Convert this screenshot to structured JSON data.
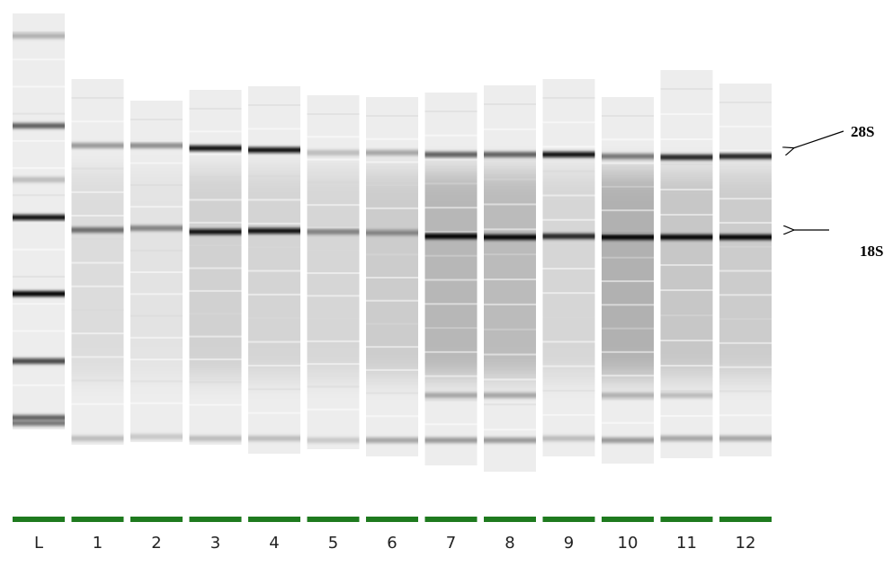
{
  "lanes": [
    "L",
    "1",
    "2",
    "3",
    "4",
    "5",
    "6",
    "7",
    "8",
    "9",
    "10",
    "11",
    "12"
  ],
  "annotations": [
    "28S",
    "18S"
  ]
}
